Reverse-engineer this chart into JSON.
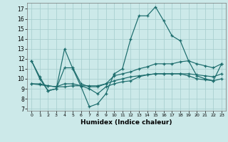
{
  "xlabel": "Humidex (Indice chaleur)",
  "xlim": [
    -0.5,
    23.5
  ],
  "ylim": [
    6.8,
    17.6
  ],
  "yticks": [
    7,
    8,
    9,
    10,
    11,
    12,
    13,
    14,
    15,
    16,
    17
  ],
  "xticks": [
    0,
    1,
    2,
    3,
    4,
    5,
    6,
    7,
    8,
    9,
    10,
    11,
    12,
    13,
    14,
    15,
    16,
    17,
    18,
    19,
    20,
    21,
    22,
    23
  ],
  "bg_color": "#cce9e9",
  "grid_color": "#aad0d0",
  "line_color": "#1a6b6b",
  "line1_y": [
    11.8,
    10.0,
    8.8,
    9.0,
    13.0,
    11.0,
    9.2,
    7.2,
    7.5,
    8.5,
    10.5,
    11.0,
    14.0,
    16.3,
    16.3,
    17.2,
    15.8,
    14.3,
    13.8,
    11.8,
    10.3,
    10.0,
    9.8,
    11.5
  ],
  "line2_y": [
    11.8,
    10.2,
    8.8,
    9.0,
    11.1,
    11.1,
    9.5,
    9.2,
    9.2,
    9.5,
    10.3,
    10.5,
    10.7,
    11.0,
    11.2,
    11.5,
    11.5,
    11.5,
    11.7,
    11.8,
    11.5,
    11.3,
    11.1,
    11.5
  ],
  "line3_y": [
    9.5,
    9.5,
    9.3,
    9.2,
    9.2,
    9.3,
    9.3,
    9.3,
    9.3,
    9.5,
    9.8,
    10.0,
    10.2,
    10.3,
    10.4,
    10.5,
    10.5,
    10.5,
    10.5,
    10.5,
    10.4,
    10.3,
    10.2,
    10.5
  ],
  "line4_y": [
    9.5,
    9.4,
    9.3,
    9.2,
    9.5,
    9.5,
    9.3,
    9.0,
    8.5,
    9.2,
    9.5,
    9.7,
    9.8,
    10.2,
    10.4,
    10.5,
    10.5,
    10.5,
    10.5,
    10.3,
    10.0,
    9.9,
    9.8,
    10.0
  ]
}
